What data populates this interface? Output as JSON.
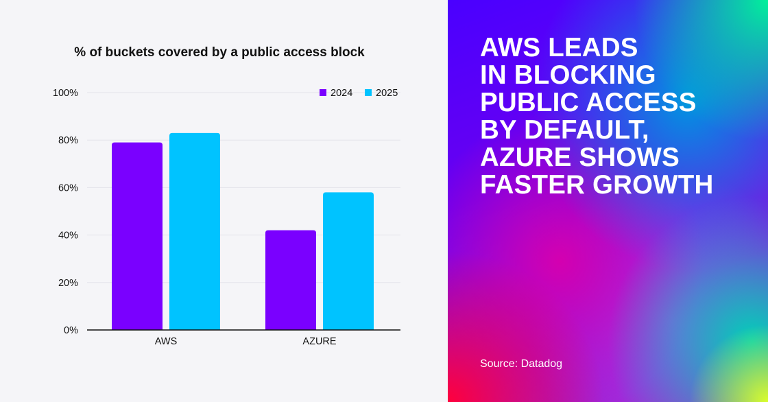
{
  "chart_data": {
    "type": "bar",
    "title": "% of buckets covered by a public access block",
    "categories": [
      "AWS",
      "AZURE"
    ],
    "series": [
      {
        "name": "2024",
        "color": "#7a00ff",
        "values": [
          79,
          42
        ]
      },
      {
        "name": "2025",
        "color": "#00c3ff",
        "values": [
          83,
          58
        ]
      }
    ],
    "xlabel": "",
    "ylabel": "",
    "ylim": [
      0,
      100
    ],
    "yticks": [
      0,
      20,
      40,
      60,
      80,
      100
    ],
    "ytick_labels": [
      "0%",
      "20%",
      "40%",
      "60%",
      "80%",
      "100%"
    ],
    "grid": true,
    "legend_position": "top-right"
  },
  "panel": {
    "headline": "AWS LEADS\nIN BLOCKING\nPUBLIC ACCESS\nBY DEFAULT,\nAZURE SHOWS\nFASTER GROWTH",
    "source": "Source: Datadog"
  },
  "colors": {
    "background": "#f5f5f8",
    "text": "#111111",
    "gridline": "#e3e3ea",
    "axis": "#111111"
  }
}
